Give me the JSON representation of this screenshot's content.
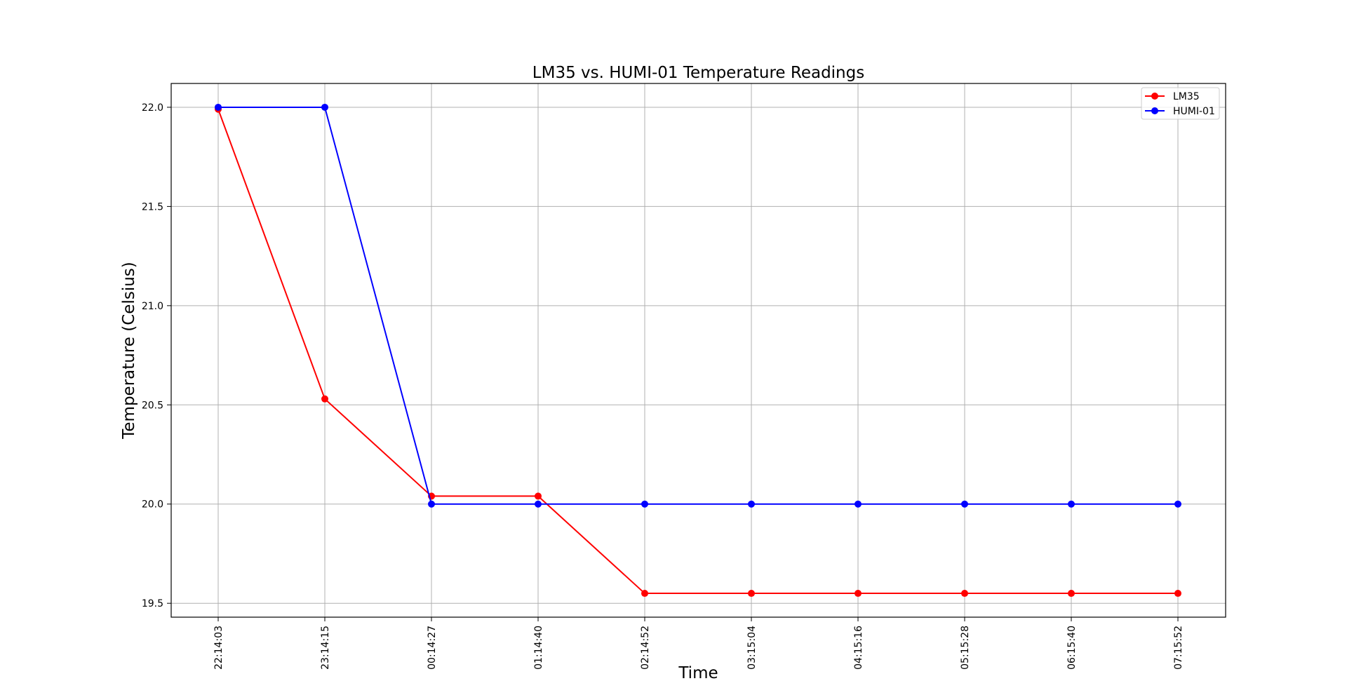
{
  "chart_data": {
    "type": "line",
    "title": "LM35 vs. HUMI-01 Temperature Readings",
    "xlabel": "Time",
    "ylabel": "Temperature (Celsius)",
    "categories": [
      "22:14:03",
      "23:14:15",
      "00:14:27",
      "01:14:40",
      "02:14:52",
      "03:15:04",
      "04:15:16",
      "05:15:28",
      "06:15:40",
      "07:15:52"
    ],
    "ylim": [
      19.43,
      22.12
    ],
    "yticks": [
      19.5,
      20.0,
      20.5,
      21.0,
      21.5,
      22.0
    ],
    "ytick_labels": [
      "19.5",
      "20.0",
      "20.5",
      "21.0",
      "21.5",
      "22.0"
    ],
    "grid": true,
    "legend_position": "top-right",
    "series": [
      {
        "name": "LM35",
        "color": "#ff0000",
        "values": [
          21.99,
          20.53,
          20.04,
          20.04,
          19.55,
          19.55,
          19.55,
          19.55,
          19.55,
          19.55
        ]
      },
      {
        "name": "HUMI-01",
        "color": "#0000ff",
        "values": [
          22.0,
          22.0,
          20.0,
          20.0,
          20.0,
          20.0,
          20.0,
          20.0,
          20.0,
          20.0
        ]
      }
    ]
  }
}
